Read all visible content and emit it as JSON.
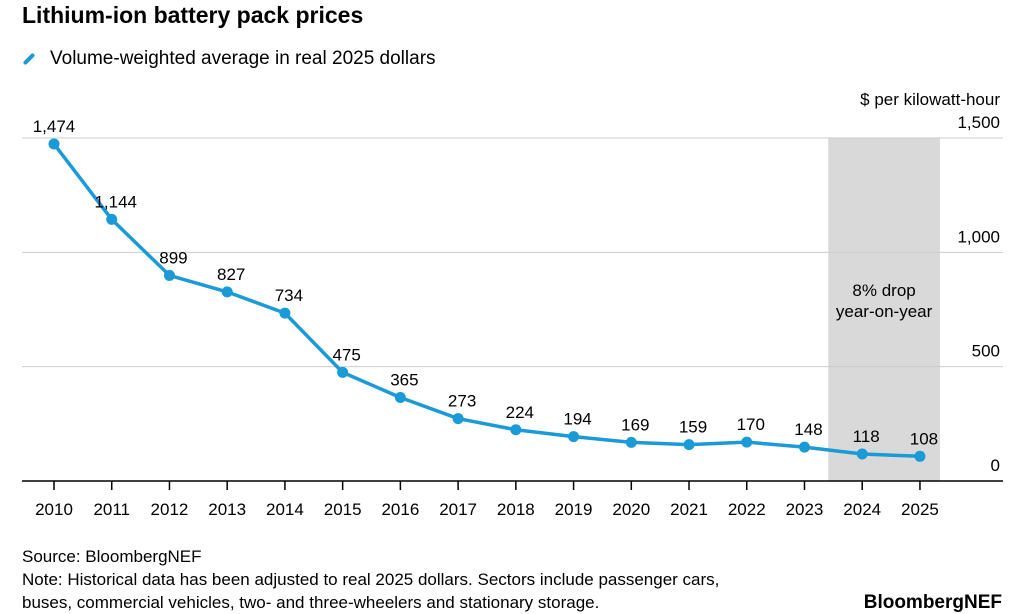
{
  "chart_data": {
    "type": "line",
    "title": "Lithium-ion battery pack prices",
    "legend": "Volume-weighted average in real 2025 dollars",
    "ylabel": "$ per kilowatt-hour",
    "x": [
      "2010",
      "2011",
      "2012",
      "2013",
      "2014",
      "2015",
      "2016",
      "2017",
      "2018",
      "2019",
      "2020",
      "2021",
      "2022",
      "2023",
      "2024",
      "2025"
    ],
    "series": [
      {
        "name": "Volume-weighted average in real 2025 dollars",
        "values": [
          1474,
          1144,
          899,
          827,
          734,
          475,
          365,
          273,
          224,
          194,
          169,
          159,
          170,
          148,
          118,
          108
        ]
      }
    ],
    "data_labels": [
      "1,474",
      "1,144",
      "899",
      "827",
      "734",
      "475",
      "365",
      "273",
      "224",
      "194",
      "169",
      "159",
      "170",
      "148",
      "118",
      "108"
    ],
    "ylim": [
      0,
      1500
    ],
    "yticks": [
      0,
      500,
      1000,
      1500
    ],
    "ytick_labels": [
      "0",
      "500",
      "1,000",
      "1,500"
    ],
    "y_axis_position": "right",
    "grid": true,
    "color": "#1a9ad6",
    "highlight": {
      "from": "2024",
      "to": "2025",
      "color": "#d9d9d9",
      "annotation": [
        "8% drop",
        "year-on-year"
      ]
    }
  },
  "footer": {
    "source": "Source: BloombergNEF",
    "note_line1": "Note: Historical data has been adjusted to real 2025 dollars. Sectors include passenger cars,",
    "note_line2": "buses, commercial vehicles, two- and three-wheelers and stationary storage.",
    "brand": "BloombergNEF"
  }
}
